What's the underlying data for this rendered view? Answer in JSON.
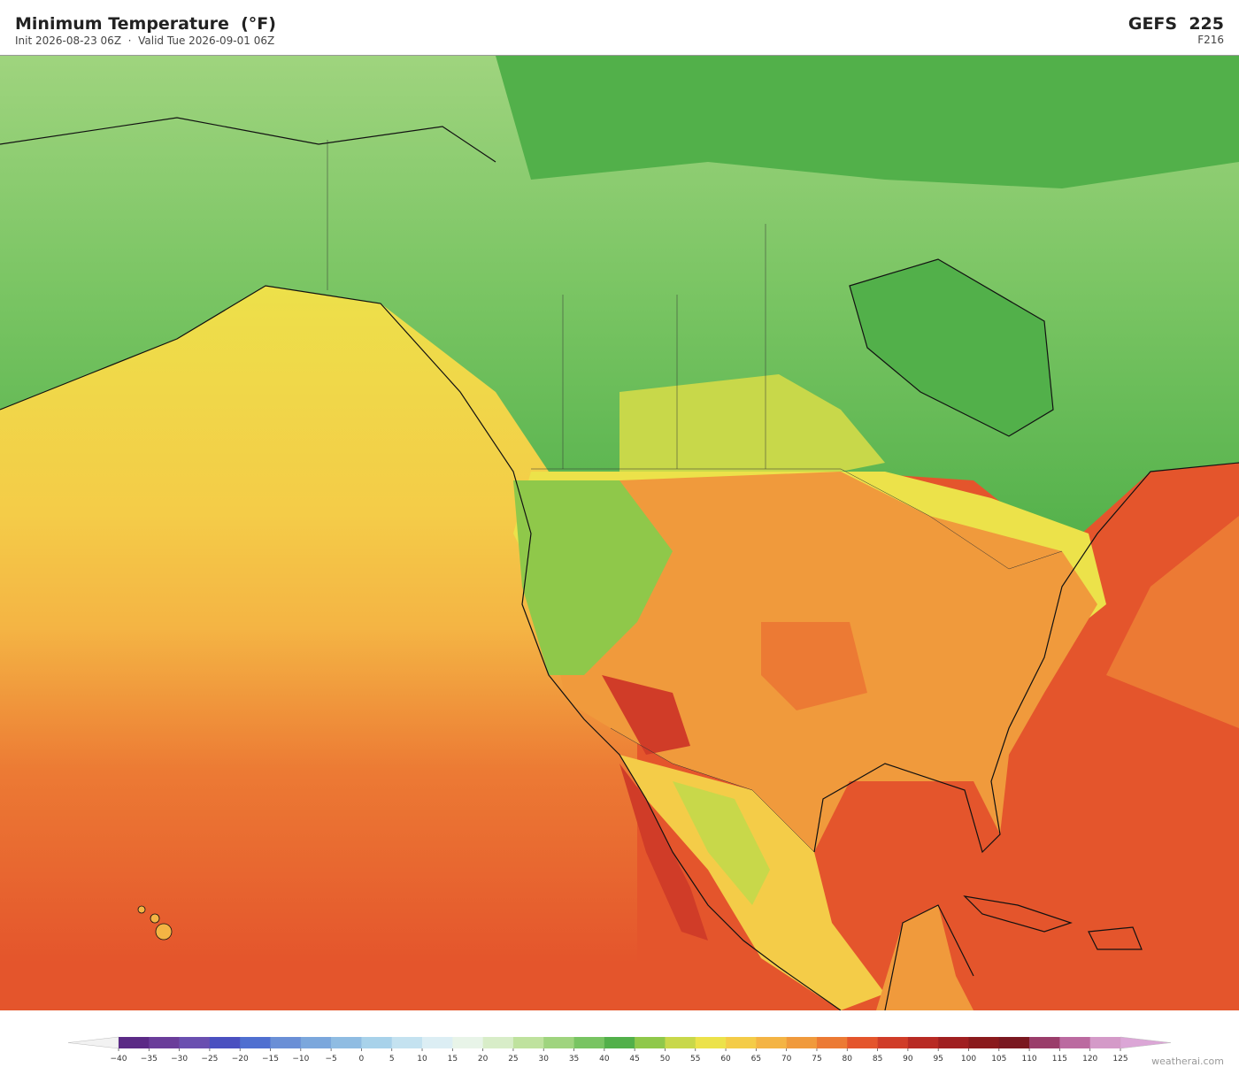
{
  "header": {
    "title": "Minimum Temperature  (°F)",
    "subtitle": "Init 2026-08-23 06Z  ·  Valid Tue 2026-09-01 06Z",
    "model": "GEFS  225",
    "forecast_hour": "F216"
  },
  "colorbar": {
    "ticks": [
      {
        "value": -40,
        "label": "−40"
      },
      {
        "value": -35,
        "label": "−35"
      },
      {
        "value": -30,
        "label": "−30"
      },
      {
        "value": -25,
        "label": "−25"
      },
      {
        "value": -20,
        "label": "−20"
      },
      {
        "value": -15,
        "label": "−15"
      },
      {
        "value": -10,
        "label": "−10"
      },
      {
        "value": -5,
        "label": "−5"
      },
      0,
      5,
      10,
      15,
      20,
      25,
      30,
      35,
      40,
      45,
      50,
      55,
      60,
      65,
      70,
      75,
      80,
      85,
      90,
      95,
      100,
      105,
      110,
      115,
      120,
      125
    ],
    "colors": [
      "#5b2a86",
      "#6a3d9a",
      "#6a4fb0",
      "#4a50c0",
      "#4f6fd0",
      "#6a8fd6",
      "#7ba7dc",
      "#8fbce2",
      "#a8d2ea",
      "#c4e2f0",
      "#dceef4",
      "#e8f4e8",
      "#d8edc8",
      "#bfe29e",
      "#9fd47e",
      "#78c462",
      "#52b04a",
      "#8fc84a",
      "#c8d84a",
      "#ece24a",
      "#f4cc48",
      "#f4b444",
      "#f09a3c",
      "#ec7a34",
      "#e4552c",
      "#d03c28",
      "#b82a24",
      "#a01f20",
      "#8a1a1c",
      "#7a1820",
      "#9a3d6a",
      "#bb6aa0",
      "#d49ac8"
    ],
    "extend_low_color": "#f2f2f2",
    "extend_high_color": "#dba6d6"
  },
  "watermark": "weatherai.com"
}
